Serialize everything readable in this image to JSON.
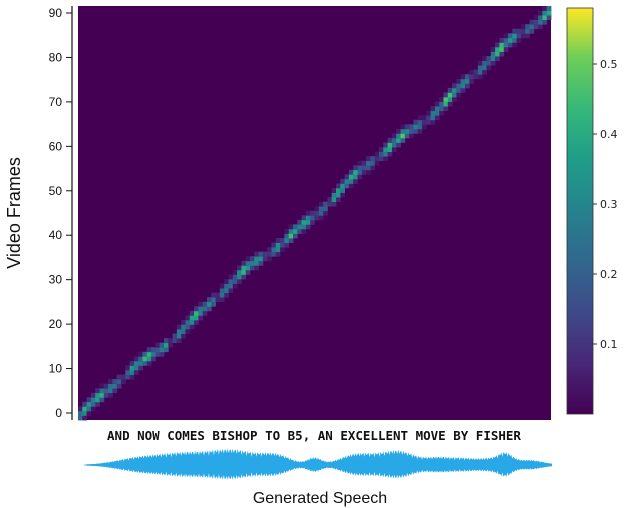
{
  "chart_data": {
    "type": "heatmap",
    "title": "",
    "ylabel": "Video Frames",
    "xlabel": "Generated Speech",
    "transcript": "AND NOW COMES BISHOP TO B5, AN EXCELLENT MOVE BY FISHER",
    "ylim": [
      0,
      91
    ],
    "y_ticks": [
      "0",
      "10",
      "20",
      "30",
      "40",
      "50",
      "60",
      "70",
      "80",
      "90"
    ],
    "colorbar": {
      "ticks": [
        "0.1",
        "0.2",
        "0.3",
        "0.4",
        "0.5"
      ],
      "range": [
        0,
        0.58
      ],
      "colormap": "viridis"
    },
    "alignment": {
      "description": "near-monotonic diagonal from (start, frame 0) to (end, frame 90)",
      "frames": 91,
      "peak_weight": 0.57
    },
    "waveform_color": "#29a8e8"
  }
}
